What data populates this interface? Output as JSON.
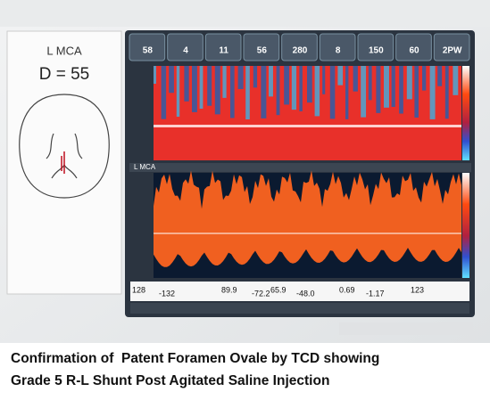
{
  "left_panel": {
    "vessel": "L MCA",
    "depth": "D = 55"
  },
  "header": {
    "values": [
      "58",
      "4",
      "11",
      "56",
      "280",
      "8",
      "150",
      "60",
      "2PW"
    ]
  },
  "spectrum": {
    "vessel": "L MCA"
  },
  "readout": {
    "values": [
      "128",
      "-132",
      "89.9",
      "-72.2",
      "65.9",
      "-48.0",
      "0.69",
      "-1.17",
      "123"
    ]
  },
  "caption": {
    "lines": [
      "Confirmation of  Patent Foramen Ovale by TCD showing",
      "Grade 5 R-L Shunt Post Agitated Saline Injection"
    ]
  }
}
